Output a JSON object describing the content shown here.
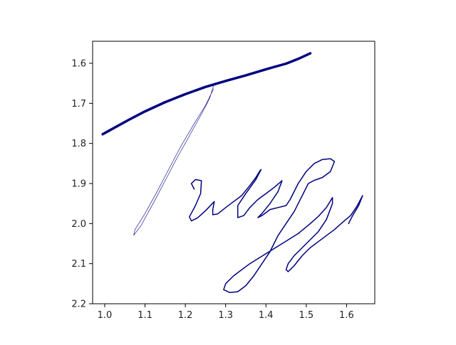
{
  "chart_data": {
    "type": "line",
    "title": "",
    "xlabel": "",
    "ylabel": "",
    "xlim": [
      0.97,
      1.67
    ],
    "ylim": [
      2.2,
      1.545
    ],
    "y_inverted": true,
    "grid": false,
    "legend": "none",
    "x_ticks": [
      1.0,
      1.1,
      1.2,
      1.3,
      1.4,
      1.5,
      1.6
    ],
    "x_tick_labels": [
      "1.0",
      "1.1",
      "1.2",
      "1.3",
      "1.4",
      "1.5",
      "1.6"
    ],
    "y_ticks": [
      1.6,
      1.7,
      1.8,
      1.9,
      2.0,
      2.1,
      2.2
    ],
    "y_tick_labels": [
      "1.6",
      "1.7",
      "1.8",
      "1.9",
      "2.0",
      "2.1",
      "2.2"
    ],
    "line_color": "#00007f",
    "series": [
      {
        "stroke": 3.5,
        "points": [
          [
            0.995,
            1.777
          ],
          [
            1.02,
            1.763
          ],
          [
            1.06,
            1.741
          ],
          [
            1.1,
            1.72
          ],
          [
            1.15,
            1.697
          ],
          [
            1.2,
            1.677
          ],
          [
            1.25,
            1.659
          ],
          [
            1.3,
            1.644
          ],
          [
            1.35,
            1.63
          ],
          [
            1.4,
            1.615
          ],
          [
            1.45,
            1.601
          ],
          [
            1.48,
            1.589
          ],
          [
            1.51,
            1.575
          ]
        ]
      },
      {
        "stroke": 0.6,
        "points": [
          [
            1.27,
            1.656
          ],
          [
            1.26,
            1.688
          ],
          [
            1.24,
            1.727
          ],
          [
            1.21,
            1.781
          ],
          [
            1.18,
            1.835
          ],
          [
            1.15,
            1.893
          ],
          [
            1.12,
            1.95
          ],
          [
            1.09,
            2.005
          ],
          [
            1.072,
            2.029
          ],
          [
            1.075,
            2.015
          ],
          [
            1.1,
            1.975
          ],
          [
            1.13,
            1.92
          ],
          [
            1.16,
            1.862
          ],
          [
            1.19,
            1.805
          ],
          [
            1.22,
            1.754
          ],
          [
            1.25,
            1.705
          ],
          [
            1.27,
            1.664
          ]
        ]
      },
      {
        "stroke": 1.5,
        "points": [
          [
            1.222,
            1.914
          ],
          [
            1.215,
            1.9
          ],
          [
            1.225,
            1.89
          ],
          [
            1.24,
            1.893
          ],
          [
            1.238,
            1.925
          ],
          [
            1.225,
            1.955
          ],
          [
            1.21,
            1.983
          ],
          [
            1.215,
            1.993
          ],
          [
            1.23,
            1.986
          ],
          [
            1.25,
            1.968
          ],
          [
            1.265,
            1.952
          ],
          [
            1.272,
            1.945
          ],
          [
            1.268,
            1.965
          ],
          [
            1.268,
            1.978
          ],
          [
            1.28,
            1.976
          ],
          [
            1.3,
            1.96
          ],
          [
            1.32,
            1.945
          ],
          [
            1.34,
            1.93
          ],
          [
            1.36,
            1.905
          ],
          [
            1.375,
            1.885
          ],
          [
            1.385,
            1.868
          ],
          [
            1.388,
            1.865
          ],
          [
            1.375,
            1.89
          ],
          [
            1.35,
            1.925
          ],
          [
            1.33,
            1.955
          ],
          [
            1.33,
            1.985
          ],
          [
            1.345,
            1.98
          ],
          [
            1.36,
            1.96
          ],
          [
            1.38,
            1.94
          ],
          [
            1.4,
            1.925
          ],
          [
            1.42,
            1.91
          ],
          [
            1.44,
            1.893
          ],
          [
            1.43,
            1.92
          ],
          [
            1.41,
            1.95
          ],
          [
            1.39,
            1.975
          ],
          [
            1.38,
            1.985
          ],
          [
            1.39,
            1.98
          ],
          [
            1.41,
            1.965
          ],
          [
            1.43,
            1.96
          ],
          [
            1.45,
            1.955
          ],
          [
            1.46,
            1.94
          ],
          [
            1.48,
            1.9
          ],
          [
            1.5,
            1.87
          ],
          [
            1.52,
            1.85
          ],
          [
            1.54,
            1.84
          ],
          [
            1.56,
            1.838
          ],
          [
            1.57,
            1.845
          ],
          [
            1.56,
            1.87
          ],
          [
            1.54,
            1.885
          ],
          [
            1.52,
            1.892
          ],
          [
            1.505,
            1.9
          ],
          [
            1.49,
            1.93
          ],
          [
            1.47,
            1.97
          ],
          [
            1.45,
            2.0
          ],
          [
            1.43,
            2.03
          ],
          [
            1.41,
            2.07
          ],
          [
            1.39,
            2.1
          ],
          [
            1.37,
            2.13
          ],
          [
            1.35,
            2.155
          ],
          [
            1.33,
            2.17
          ],
          [
            1.31,
            2.172
          ],
          [
            1.295,
            2.165
          ],
          [
            1.3,
            2.15
          ],
          [
            1.32,
            2.13
          ],
          [
            1.36,
            2.1
          ],
          [
            1.4,
            2.075
          ],
          [
            1.44,
            2.05
          ],
          [
            1.48,
            2.025
          ],
          [
            1.51,
            2.0
          ],
          [
            1.53,
            1.982
          ],
          [
            1.55,
            1.96
          ],
          [
            1.565,
            1.935
          ],
          [
            1.565,
            1.95
          ],
          [
            1.55,
            1.99
          ],
          [
            1.53,
            2.02
          ],
          [
            1.51,
            2.04
          ],
          [
            1.49,
            2.06
          ],
          [
            1.47,
            2.08
          ],
          [
            1.455,
            2.1
          ],
          [
            1.45,
            2.115
          ],
          [
            1.455,
            2.12
          ],
          [
            1.47,
            2.105
          ],
          [
            1.49,
            2.08
          ],
          [
            1.51,
            2.06
          ],
          [
            1.53,
            2.045
          ],
          [
            1.55,
            2.03
          ],
          [
            1.57,
            2.015
          ],
          [
            1.59,
            1.997
          ],
          [
            1.61,
            1.98
          ],
          [
            1.625,
            1.958
          ],
          [
            1.64,
            1.93
          ],
          [
            1.63,
            1.955
          ],
          [
            1.615,
            1.98
          ],
          [
            1.605,
            2.0
          ]
        ]
      }
    ]
  }
}
